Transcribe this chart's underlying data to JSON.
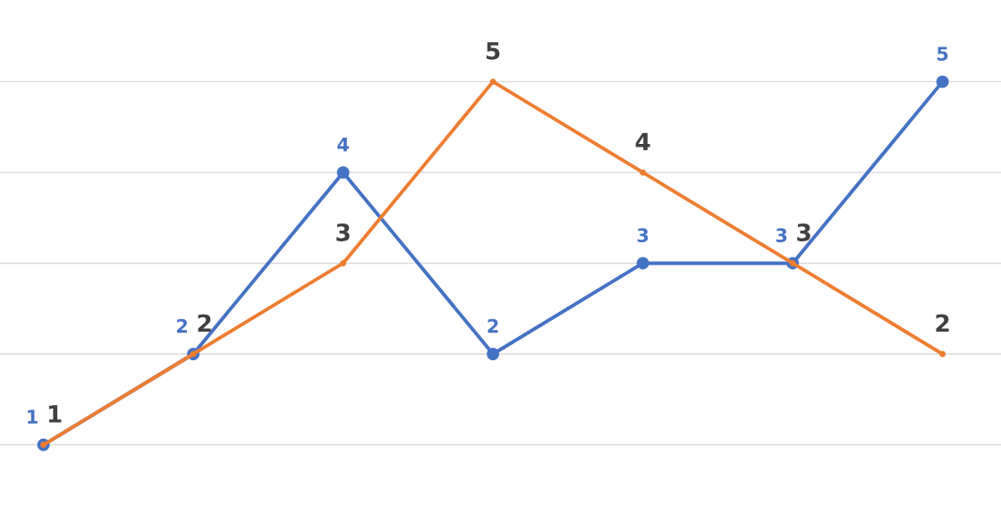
{
  "chart_data": {
    "type": "line",
    "categories": [
      null,
      null,
      null,
      null,
      null,
      null,
      null
    ],
    "series": [
      {
        "color": "#4472c4",
        "values": [
          1,
          2,
          4,
          2,
          3,
          3,
          5
        ]
      },
      {
        "color": "#ed7d31",
        "values": [
          1,
          2,
          3,
          5,
          4,
          3,
          2
        ]
      }
    ],
    "ylim": [
      0.05,
      5.9
    ],
    "yticks": [
      1,
      2,
      3,
      4,
      5
    ],
    "tick_labels": false,
    "grid": "y",
    "marker": "circle",
    "line_style": "solid",
    "data_labels": true
  }
}
